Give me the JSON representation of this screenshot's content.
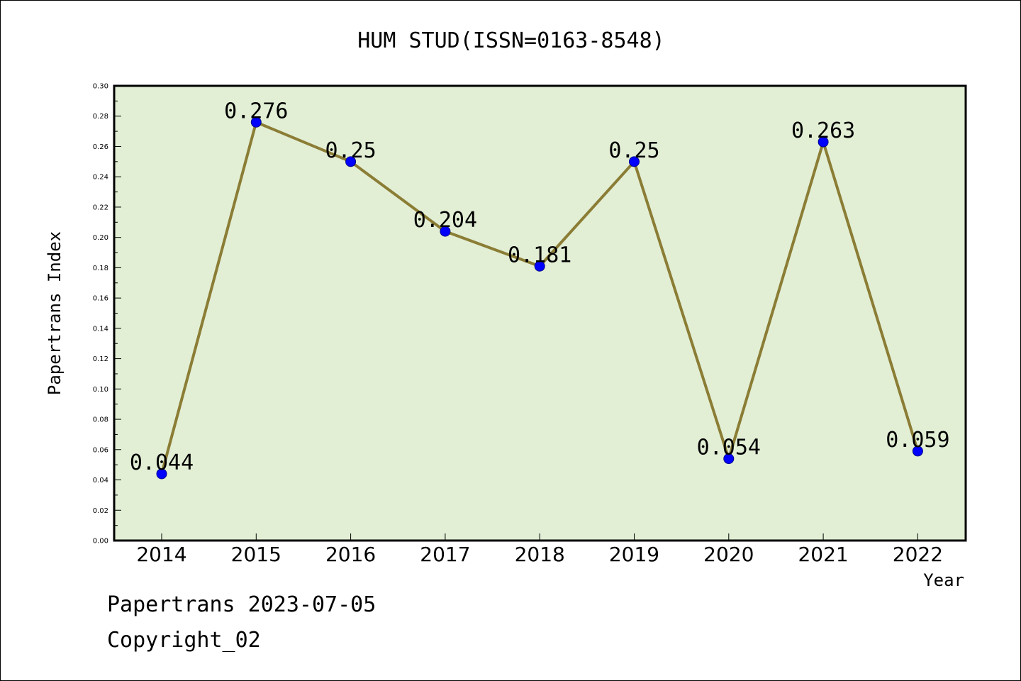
{
  "chart_data": {
    "type": "line",
    "title": "HUM STUD(ISSN=0163-8548)",
    "xlabel": "Year",
    "ylabel": "Papertrans Index",
    "categories": [
      "2014",
      "2015",
      "2016",
      "2017",
      "2018",
      "2019",
      "2020",
      "2021",
      "2022"
    ],
    "values": [
      0.044,
      0.276,
      0.25,
      0.204,
      0.181,
      0.25,
      0.054,
      0.263,
      0.059
    ],
    "data_labels": [
      "0.044",
      "0.276",
      "0.25",
      "0.204",
      "0.181",
      "0.25",
      "0.054",
      "0.263",
      "0.059"
    ],
    "ylim": [
      0,
      0.3
    ],
    "yticks": [
      "0.00",
      "0.02",
      "0.04",
      "0.06",
      "0.08",
      "0.10",
      "0.12",
      "0.14",
      "0.16",
      "0.18",
      "0.20",
      "0.22",
      "0.24",
      "0.26",
      "0.28",
      "0.30"
    ],
    "grid": false,
    "colors": {
      "plot_background": "#e2efd5",
      "line": "#8b7d35",
      "marker": "#0000ff"
    }
  },
  "footer": {
    "date_text": "Papertrans 2023-07-05",
    "copyright_text": "Copyright_02"
  }
}
